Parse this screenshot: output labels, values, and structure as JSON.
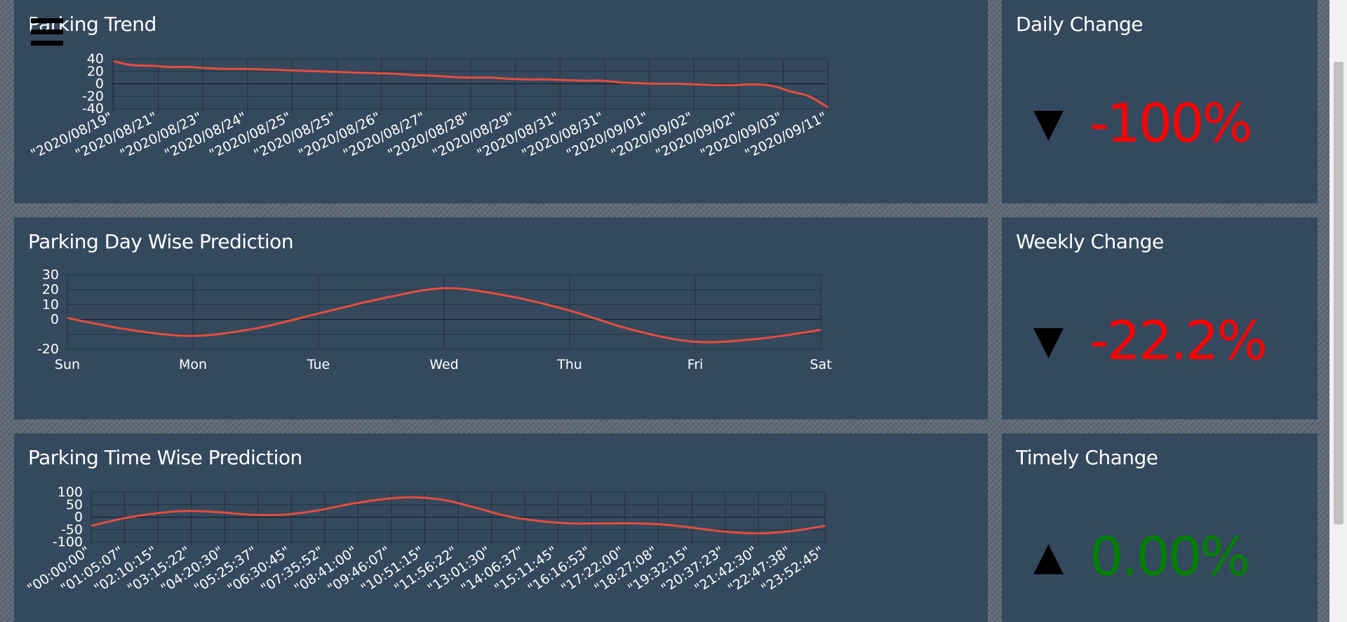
{
  "panels": {
    "trend": {
      "title": "Parking Trend"
    },
    "daily": {
      "title": "Daily Change",
      "arrow": "▼",
      "value": "-100%",
      "color": "#ff0000"
    },
    "weekday": {
      "title": "Parking  Day Wise  Prediction"
    },
    "weekly": {
      "title": "Weekly Change",
      "arrow": "▼",
      "value": "-22.2%",
      "color": "#ff0000"
    },
    "time": {
      "title": "Parking Time Wise  Prediction"
    },
    "timely": {
      "title": "Timely Change",
      "arrow": "▲",
      "value": "0.00%",
      "color": "#008000"
    }
  },
  "menu_icon": "hamburger-menu-icon",
  "chart_data": [
    {
      "type": "line",
      "title": "Parking Trend",
      "line_color": "#e74c3c",
      "ylim": [
        -40,
        40
      ],
      "yticks": [
        40,
        20,
        0,
        -20,
        -40
      ],
      "xtick_labels": [
        "\"2020/08/19\"",
        "\"2020/08/21\"",
        "\"2020/08/23\"",
        "\"2020/08/24\"",
        "\"2020/08/25\"",
        "\"2020/08/25\"",
        "\"2020/08/26\"",
        "\"2020/08/27\"",
        "\"2020/08/28\"",
        "\"2020/08/29\"",
        "\"2020/08/31\"",
        "\"2020/08/31\"",
        "\"2020/09/01\"",
        "\"2020/09/02\"",
        "\"2020/09/02\"",
        "\"2020/09/03\"",
        "\"2020/09/11\""
      ],
      "values": [
        36,
        30,
        29,
        27,
        27,
        25,
        24,
        24,
        23,
        22,
        21,
        20,
        19,
        18,
        17,
        16,
        14,
        13,
        11,
        10,
        10,
        8,
        7,
        7,
        6,
        5,
        5,
        2,
        1,
        0,
        0,
        -1,
        -2,
        -2,
        -1,
        -3,
        -12,
        -20,
        -38
      ]
    },
    {
      "type": "line",
      "title": "Parking  Day Wise  Prediction",
      "line_color": "#e74c3c",
      "ylim": [
        -20,
        30
      ],
      "yticks": [
        30,
        20,
        10,
        0,
        -20
      ],
      "ygrid": [
        30,
        20,
        10,
        0,
        -10,
        -20
      ],
      "categories": [
        "Sun",
        "Mon",
        "Tue",
        "Wed",
        "Thu",
        "Fri",
        "Sat"
      ],
      "x": [
        0,
        0.5,
        1,
        1.5,
        2,
        2.5,
        3,
        3.5,
        4,
        4.5,
        5,
        5.5,
        6
      ],
      "values": [
        1,
        -7,
        -11,
        -6,
        4,
        14,
        21,
        16,
        6,
        -7,
        -15,
        -13,
        -7
      ]
    },
    {
      "type": "line",
      "title": "Parking Time Wise  Prediction",
      "line_color": "#e74c3c",
      "ylim": [
        -100,
        100
      ],
      "yticks": [
        100,
        50,
        0,
        -50,
        -100
      ],
      "xtick_labels": [
        "\"00:00:00\"",
        "\"01:05:07\"",
        "\"02:10:15\"",
        "\"03:15:22\"",
        "\"04:20:30\"",
        "\"05:25:37\"",
        "\"06:30:45\"",
        "\"07:35:52\"",
        "\"08:41:00\"",
        "\"09:46:07\"",
        "\"10:51:15\"",
        "\"11:56:22\"",
        "\"13:01:30\"",
        "\"14:06:37\"",
        "\"15:11:45\"",
        "\"16:16:53\"",
        "\"17:22:00\"",
        "\"18:27:08\"",
        "\"19:32:15\"",
        "\"20:37:23\"",
        "\"21:42:30\"",
        "\"22:47:38\"",
        "\"23:52:45\""
      ],
      "values": [
        -35,
        -5,
        15,
        25,
        20,
        10,
        10,
        25,
        50,
        70,
        80,
        70,
        40,
        5,
        -15,
        -25,
        -25,
        -25,
        -30,
        -45,
        -60,
        -65,
        -55,
        -35
      ]
    }
  ]
}
